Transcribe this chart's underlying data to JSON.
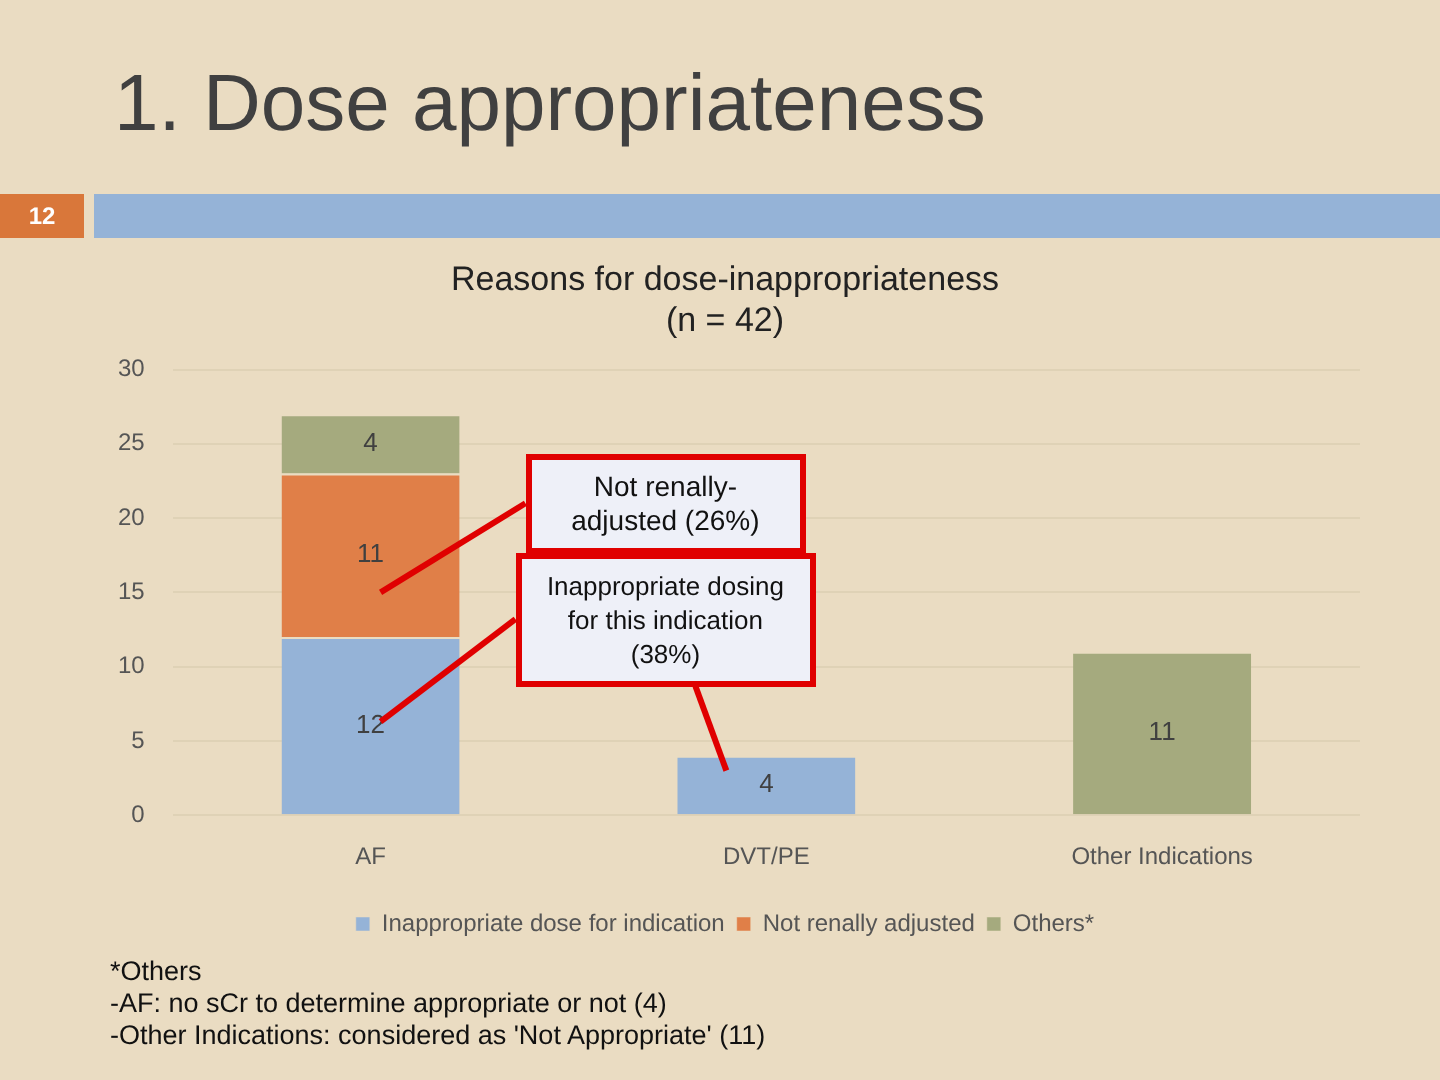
{
  "chart_data": {
    "type": "bar",
    "stacked": true,
    "title": "1. Dose appropriateness",
    "subtitle": "Reasons for dose-inappropriateness\n(n = 42)",
    "categories": [
      "AF",
      "DVT/PE",
      "Other Indications"
    ],
    "series": [
      {
        "name": "Inappropriate dose for indication",
        "color": "#95b3d7",
        "values": [
          12,
          4,
          null
        ]
      },
      {
        "name": "Not renally adjusted",
        "color": "#e07f48",
        "values": [
          11,
          null,
          null
        ]
      },
      {
        "name": "Others*",
        "color": "#a5aa7e",
        "values": [
          4,
          null,
          11
        ]
      }
    ],
    "ylim": [
      0,
      30
    ],
    "yticks": [
      0,
      5,
      10,
      15,
      20,
      25,
      30
    ],
    "grid": "y",
    "legend": "bottom",
    "data_labels": true,
    "annotations": [
      "12",
      "Not renally-adjusted (26%)",
      "Inappropriate dosing for this indication (38%)",
      "*Others",
      "-AF: no sCr to determine appropriate or not (4)",
      "-Other Indications: considered as 'Not Appropriate' (11)"
    ]
  }
}
